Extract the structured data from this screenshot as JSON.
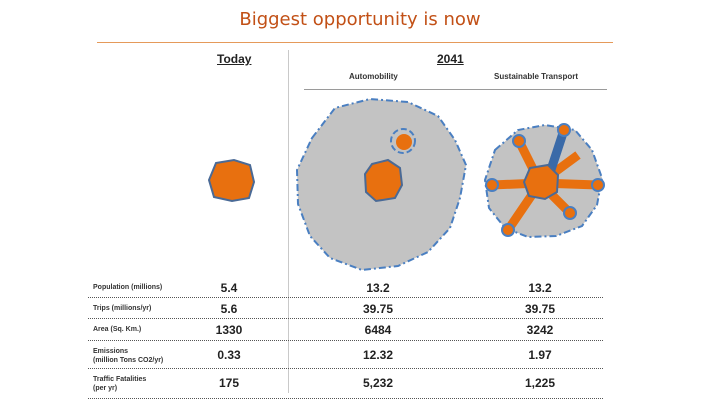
{
  "title": "Biggest opportunity is now",
  "headers": {
    "today": "Today",
    "future": "2041",
    "automobility": "Automobility",
    "sustainable": "Sustainable Transport"
  },
  "rows": [
    {
      "label": "Population (millions)",
      "today": "5.4",
      "automobility": "13.2",
      "sustainable": "13.2"
    },
    {
      "label": "Trips (millions/yr)",
      "today": "5.6",
      "automobility": "39.75",
      "sustainable": "39.75"
    },
    {
      "label": "Area (Sq. Km.)",
      "today": "1330",
      "automobility": "6484",
      "sustainable": "3242"
    },
    {
      "label_line1": "Emissions",
      "label_line2": "(million Tons CO2/yr)",
      "today": "0.33",
      "automobility": "12.32",
      "sustainable": "1.97"
    },
    {
      "label_line1": "Traffic Fatalities",
      "label_line2": "(per yr)",
      "today": "175",
      "automobility": "5,232",
      "sustainable": "1,225"
    }
  ],
  "colors": {
    "title": "#c25016",
    "core": "#e8700f",
    "sprawl": "#c3c3c3",
    "boundary": "#4a7fc1",
    "transit": "#3a6aa8"
  }
}
